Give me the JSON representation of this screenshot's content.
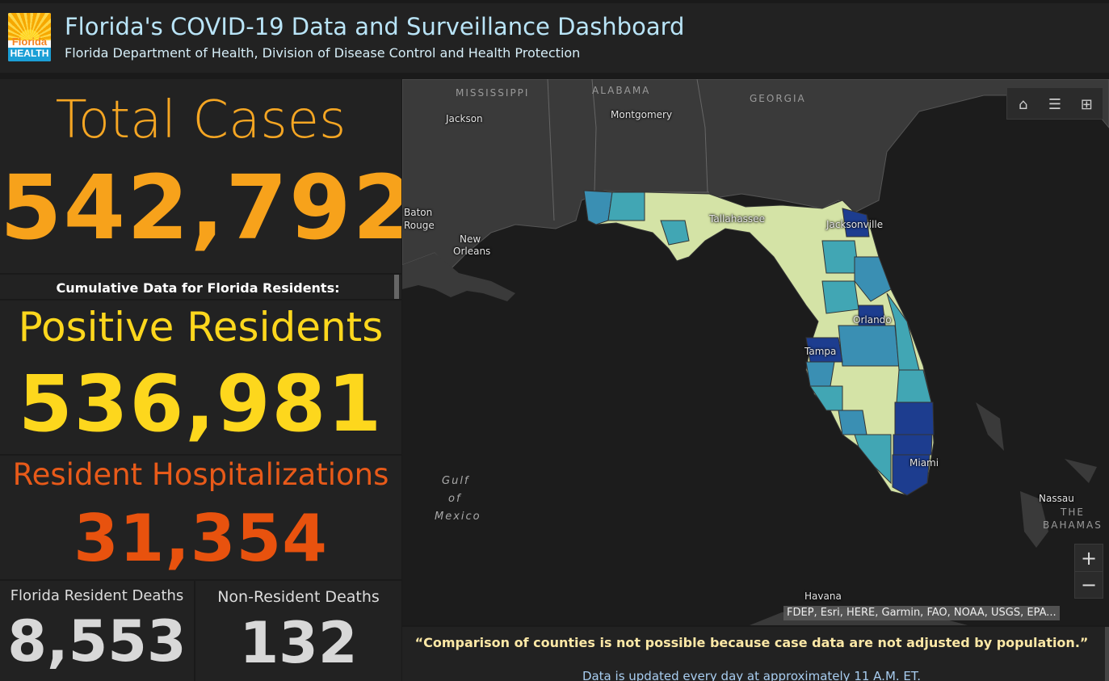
{
  "header": {
    "logo_word1": "Florida",
    "logo_word2": "HEALTH",
    "title": "Florida's COVID-19 Data and Surveillance Dashboard",
    "subtitle": "Florida Department of Health, Division of Disease Control and Health Protection"
  },
  "stats": {
    "total_cases": {
      "label": "Total Cases",
      "value": "542,792"
    },
    "cumulative_label": "Cumulative Data for Florida Residents:",
    "positive_residents": {
      "label": "Positive Residents",
      "value": "536,981"
    },
    "hospitalizations": {
      "label": "Resident Hospitalizations",
      "value": "31,354"
    },
    "resident_deaths": {
      "label": "Florida Resident Deaths",
      "value": "8,553"
    },
    "non_resident_deaths": {
      "label": "Non-Resident Deaths",
      "value": "132"
    }
  },
  "map": {
    "states": {
      "mississippi": "MISSISSIPPI",
      "alabama": "ALABAMA",
      "georgia": "GEORGIA"
    },
    "cities": {
      "jackson": "Jackson",
      "montgomery": "Montgomery",
      "baton_rouge_1": "Baton",
      "baton_rouge_2": "Rouge",
      "new_orleans_1": "New",
      "new_orleans_2": "Orleans",
      "tallahassee": "Tallahassee",
      "jacksonville": "Jacksonville",
      "orlando": "Orlando",
      "tampa": "Tampa",
      "miami": "Miami",
      "havana": "Havana",
      "nassau": "Nassau"
    },
    "water": {
      "gulf_1": "Gulf",
      "gulf_2": "of",
      "gulf_3": "Mexico",
      "bahamas_1": "THE",
      "bahamas_2": "BAHAMAS"
    },
    "tools": {
      "home_icon": "⌂",
      "legend_icon": "☰",
      "basemap_icon": "⊞"
    },
    "zoom_in": "+",
    "zoom_out": "−",
    "attribution": "FDEP, Esri, HERE, Garmin, FAO, NOAA, USGS, EPA...",
    "colors": {
      "land": "#3a3a3a",
      "water": "#1c1c1c",
      "low": "#d4e3a6",
      "mid": "#41a6b4",
      "high": "#1d3d8f"
    }
  },
  "note": {
    "quote": "“Comparison of counties is not possible because case data are not adjusted by population.”",
    "update": "Data is updated every day at approximately 11 A.M. ET."
  }
}
